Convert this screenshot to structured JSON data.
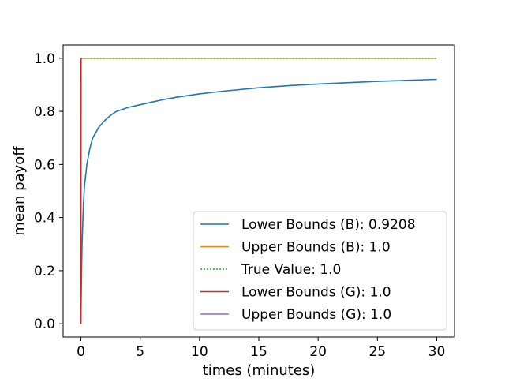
{
  "chart_data": {
    "type": "line",
    "title": "",
    "xlabel": "times (minutes)",
    "ylabel": "mean payoff",
    "xlim": [
      -1.5,
      31.5
    ],
    "ylim": [
      -0.05,
      1.05
    ],
    "x_ticks": [
      0,
      5,
      10,
      15,
      20,
      25,
      30
    ],
    "y_ticks": [
      0.0,
      0.2,
      0.4,
      0.6,
      0.8,
      1.0
    ],
    "x_tick_labels": [
      "0",
      "5",
      "10",
      "15",
      "20",
      "25",
      "30"
    ],
    "y_tick_labels": [
      "0.0",
      "0.2",
      "0.4",
      "0.6",
      "0.8",
      "1.0"
    ],
    "grid": false,
    "legend_position": "bottom-right",
    "series": [
      {
        "name": "Lower Bounds (B): 0.9208",
        "color": "#1f77b4",
        "style": "solid",
        "x": [
          0,
          0.05,
          0.1,
          0.2,
          0.3,
          0.5,
          0.75,
          1,
          1.5,
          2,
          2.5,
          3,
          4,
          5,
          6,
          7,
          8,
          10,
          12,
          15,
          18,
          20,
          25,
          30
        ],
        "y": [
          0.0,
          0.18,
          0.3,
          0.44,
          0.52,
          0.6,
          0.66,
          0.7,
          0.74,
          0.765,
          0.785,
          0.8,
          0.815,
          0.825,
          0.835,
          0.845,
          0.853,
          0.866,
          0.876,
          0.889,
          0.898,
          0.903,
          0.913,
          0.9208
        ]
      },
      {
        "name": "Upper Bounds (B): 1.0",
        "color": "#ff7f0e",
        "style": "solid",
        "x": [
          0,
          30
        ],
        "y": [
          1.0,
          1.0
        ]
      },
      {
        "name": "True Value: 1.0",
        "color": "#2ca02c",
        "style": "dotted",
        "x": [
          0,
          30
        ],
        "y": [
          1.0,
          1.0
        ]
      },
      {
        "name": "Lower Bounds (G): 1.0",
        "color": "#d62728",
        "style": "solid",
        "x": [
          0,
          0.02,
          0.04,
          0.06
        ],
        "y": [
          0.0,
          1.0,
          1.0,
          1.0
        ]
      },
      {
        "name": "Upper Bounds (G): 1.0",
        "color": "#9467bd",
        "style": "solid",
        "x": [
          0,
          0.06
        ],
        "y": [
          1.0,
          1.0
        ]
      }
    ]
  }
}
